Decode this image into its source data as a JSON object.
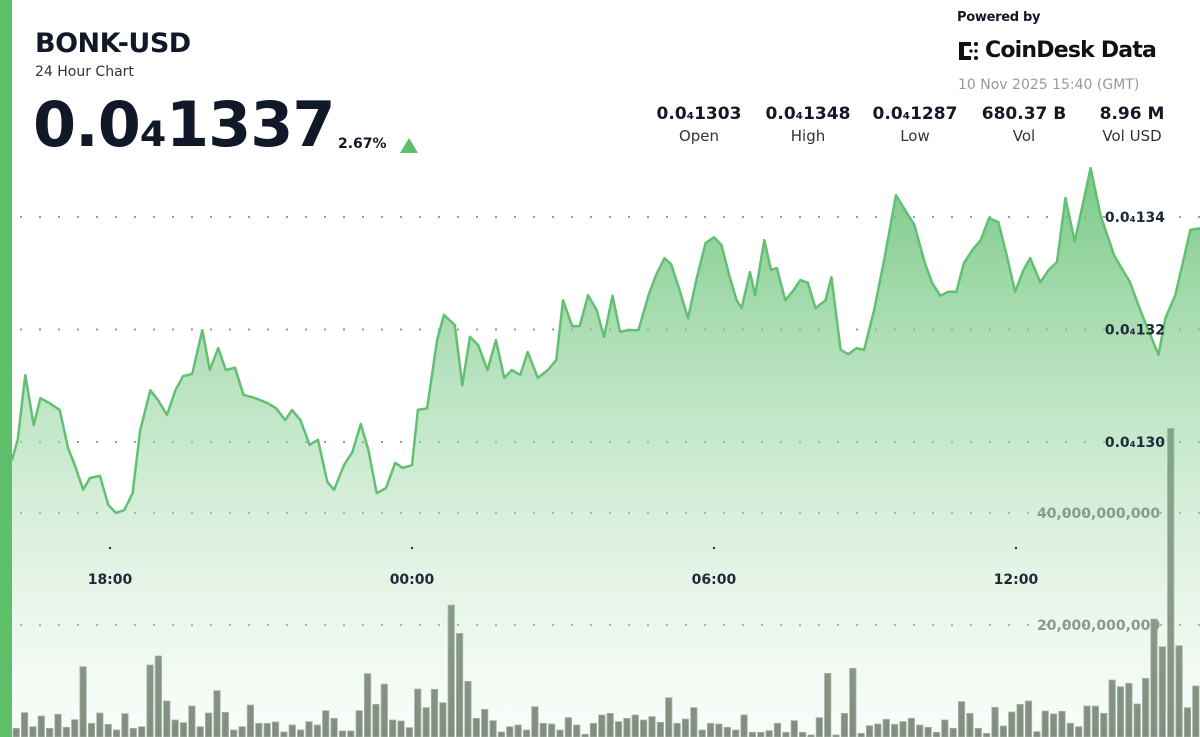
{
  "header": {
    "title": "BONK-USD",
    "subtitle": "24 Hour Chart",
    "price": "0.0₄1337",
    "change": "2.67%",
    "change_direction": "up",
    "powered_by": "Powered by",
    "brand": "CoinDesk Data",
    "timestamp": "10 Nov 2025 15:40 (GMT)"
  },
  "stats": [
    {
      "value": "0.0₄1303",
      "label": "Open"
    },
    {
      "value": "0.0₄1348",
      "label": "High"
    },
    {
      "value": "0.0₄1287",
      "label": "Low"
    },
    {
      "value": "680.37 B",
      "label": "Vol"
    },
    {
      "value": "8.96 M",
      "label": "Vol USD"
    }
  ],
  "colors": {
    "accent": "#5cbf6a",
    "line": "#62c072",
    "volume_bar": "#5f6b5d",
    "text": "#111827"
  },
  "chart_data": {
    "type": "area",
    "grid": true,
    "x_ticks": [
      "18:00",
      "00:00",
      "06:00",
      "12:00"
    ],
    "price_ticks": [
      {
        "value": 1.34e-05,
        "label": "0.0₄134"
      },
      {
        "value": 1.32e-05,
        "label": "0.0₄132"
      },
      {
        "value": 1.3e-05,
        "label": "0.0₄130"
      }
    ],
    "volume_ticks": [
      {
        "value": 40000000000,
        "label": "40,000,000,000"
      },
      {
        "value": 20000000000,
        "label": "20,000,000,000"
      }
    ],
    "price_series": {
      "x": [
        "16:03",
        "16:10",
        "16:19",
        "16:29",
        "16:37",
        "16:48",
        "17:00",
        "17:10",
        "17:18",
        "17:28",
        "17:36",
        "17:48",
        "17:58",
        "18:07",
        "18:17",
        "18:27",
        "18:36",
        "18:48",
        "18:57",
        "19:08",
        "19:18",
        "19:27",
        "19:38",
        "19:50",
        "19:59",
        "20:09",
        "20:18",
        "20:29",
        "20:39",
        "20:53",
        "21:08",
        "21:18",
        "21:29",
        "21:37",
        "21:47",
        "21:58",
        "22:08",
        "22:19",
        "22:27",
        "22:39",
        "22:49",
        "22:59",
        "23:08",
        "23:18",
        "23:29",
        "23:40",
        "23:49",
        "00:00",
        "00:07",
        "00:18",
        "00:30",
        "00:38",
        "00:51",
        "01:00",
        "01:09",
        "01:19",
        "01:30",
        "01:40",
        "01:50",
        "01:59",
        "02:09",
        "02:18",
        "02:30",
        "02:42",
        "02:52",
        "03:00",
        "03:11",
        "03:20",
        "03:30",
        "03:40",
        "03:49",
        "03:59",
        "04:08",
        "04:18",
        "04:30",
        "04:42",
        "04:51",
        "05:01",
        "05:09",
        "05:19",
        "05:29",
        "05:39",
        "05:50",
        "06:00",
        "06:09",
        "06:18",
        "06:27",
        "06:33",
        "06:43",
        "06:49",
        "07:00",
        "07:08",
        "07:15",
        "07:25",
        "07:35",
        "07:43",
        "07:52",
        "08:01",
        "08:13",
        "08:20",
        "08:31",
        "08:40",
        "08:50",
        "08:59",
        "09:11",
        "09:23",
        "09:37",
        "09:48",
        "09:59",
        "10:11",
        "10:20",
        "10:30",
        "10:39",
        "10:49",
        "10:58",
        "11:08",
        "11:18",
        "11:28",
        "11:39",
        "11:49",
        "11:59",
        "12:09",
        "12:17",
        "12:29",
        "12:39",
        "12:49",
        "12:59",
        "13:10",
        "13:29",
        "13:41",
        "13:57",
        "14:16",
        "14:28",
        "14:50",
        "14:58",
        "15:10",
        "15:28",
        "15:40"
      ],
      "y": [
        1.2968e-05,
        1.3004e-05,
        1.3119e-05,
        1.303e-05,
        1.3078e-05,
        1.3069e-05,
        1.3057e-05,
        1.2989e-05,
        1.2959e-05,
        1.2915e-05,
        1.2936e-05,
        1.294e-05,
        1.2888e-05,
        1.2874e-05,
        1.2879e-05,
        1.2909e-05,
        1.3021e-05,
        1.3092e-05,
        1.3075e-05,
        1.3048e-05,
        1.3092e-05,
        1.3117e-05,
        1.3121e-05,
        1.3199e-05,
        1.3128e-05,
        1.3167e-05,
        1.3128e-05,
        1.3132e-05,
        1.3084e-05,
        1.3078e-05,
        1.3069e-05,
        1.306e-05,
        1.3039e-05,
        1.3057e-05,
        1.3039e-05,
        1.2995e-05,
        1.3004e-05,
        1.2929e-05,
        1.2915e-05,
        1.2959e-05,
        1.2982e-05,
        1.3032e-05,
        1.2986e-05,
        1.2909e-05,
        1.2918e-05,
        1.2963e-05,
        1.2954e-05,
        1.2959e-05,
        1.3057e-05,
        1.306e-05,
        1.3181e-05,
        1.3226e-05,
        1.3208e-05,
        1.3101e-05,
        1.3187e-05,
        1.3172e-05,
        1.3128e-05,
        1.3181e-05,
        1.3114e-05,
        1.3128e-05,
        1.3119e-05,
        1.316e-05,
        1.3114e-05,
        1.3128e-05,
        1.3146e-05,
        1.3252e-05,
        1.3206e-05,
        1.3206e-05,
        1.3261e-05,
        1.3235e-05,
        1.3187e-05,
        1.326e-05,
        1.3196e-05,
        1.3199e-05,
        1.3199e-05,
        1.3261e-05,
        1.3297e-05,
        1.3327e-05,
        1.3316e-05,
        1.327e-05,
        1.322e-05,
        1.3288e-05,
        1.3354e-05,
        1.3364e-05,
        1.335e-05,
        1.3297e-05,
        1.3252e-05,
        1.3238e-05,
        1.3302e-05,
        1.3261e-05,
        1.3359e-05,
        1.3306e-05,
        1.3309e-05,
        1.3252e-05,
        1.327e-05,
        1.3288e-05,
        1.3283e-05,
        1.3238e-05,
        1.3252e-05,
        1.3293e-05,
        1.3164e-05,
        1.3156e-05,
        1.3167e-05,
        1.3164e-05,
        1.3235e-05,
        1.3324e-05,
        1.3439e-05,
        1.3412e-05,
        1.3386e-05,
        1.332e-05,
        1.3283e-05,
        1.326e-05,
        1.3267e-05,
        1.3267e-05,
        1.3318e-05,
        1.3341e-05,
        1.3359e-05,
        1.3398e-05,
        1.3391e-05,
        1.3332e-05,
        1.3267e-05,
        1.3306e-05,
        1.3327e-05,
        1.3284e-05,
        1.3306e-05,
        1.332e-05,
        1.3434e-05,
        1.3356e-05,
        1.3487e-05,
        1.3402e-05,
        1.3332e-05,
        1.3284e-05,
        1.3235e-05,
        1.3155e-05,
        1.322e-05,
        1.3261e-05,
        1.3377e-05,
        1.338e-05
      ]
    },
    "volume_series": [
      1550000000.0,
      4350000000.0,
      1840000000.0,
      3750000000.0,
      1550000000.0,
      4050000000.0,
      1730000000.0,
      3090000000.0,
      12560000000.0,
      2440000000.0,
      4280000000.0,
      2260000000.0,
      1250000000.0,
      4170000000.0,
      1550000000.0,
      1840000000.0,
      12850000000.0,
      14460000000.0,
      6430000000.0,
      3030000000.0,
      2560000000.0,
      5530000000.0,
      1840000000.0,
      4280000000.0,
      8270000000.0,
      4400000000.0,
      1250000000.0,
      1840000000.0,
      5710000000.0,
      2440000000.0,
      2440000000.0,
      2680000000.0,
      890000000.0,
      2140000000.0,
      1250000000.0,
      2740000000.0,
      2140000000.0,
      4700000000.0,
      3330000000.0,
      1070000000.0,
      1070000000.0,
      4700000000.0,
      11310000000.0,
      5830000000.0,
      9460000000.0,
      3030000000.0,
      2860000000.0,
      1670000000.0,
      8570000000.0,
      5240000000.0,
      8510000000.0,
      6130000000.0,
      23560000000.0,
      18500000000.0,
      9940000000.0,
      3330000000.0,
      4940000000.0,
      2920000000.0,
      890000000.0,
      1840000000.0,
      2140000000.0,
      1250000000.0,
      5410000000.0,
      2440000000.0,
      2320000000.0,
      1250000000.0,
      3450000000.0,
      2140000000.0,
      480000000.0,
      2440000000.0,
      3930000000.0,
      4220000000.0,
      2740000000.0,
      3330000000.0,
      3930000000.0,
      3030000000.0,
      3630000000.0,
      2620000000.0,
      7020000000.0,
      2440000000.0,
      3210000000.0,
      5240000000.0,
      1250000000.0,
      2440000000.0,
      2320000000.0,
      1730000000.0,
      1250000000.0,
      3930000000.0,
      830000000.0,
      830000000.0,
      1130000000.0,
      2440000000.0,
      830000000.0,
      2920000000.0,
      830000000.0,
      360000000.0,
      3450000000.0,
      11360000000.0,
      360000000.0,
      4220000000.0,
      12260000000.0,
      650000000.0,
      2020000000.0,
      2320000000.0,
      3150000000.0,
      2260000000.0,
      2740000000.0,
      3330000000.0,
      2140000000.0,
      1730000000.0,
      830000000.0,
      3030000000.0,
      1550000000.0,
      6310000000.0,
      4220000000.0,
      1550000000.0,
      650000000.0,
      5300000000.0,
      1960000000.0,
      4460000000.0,
      5830000000.0,
      6430000000.0,
      950000000.0,
      4640000000.0,
      4110000000.0,
      4580000000.0,
      2440000000.0,
      1840000000.0,
      5530000000.0,
      5530000000.0,
      4220000000.0,
      10170000000.0,
      8980000000.0,
      9580000000.0,
      5890000000.0,
      10470000000.0,
      21060000000.0,
      16120000000.0,
      55100000000.0,
      16300000000.0,
      5240000000.0,
      9100000000.0
    ]
  }
}
